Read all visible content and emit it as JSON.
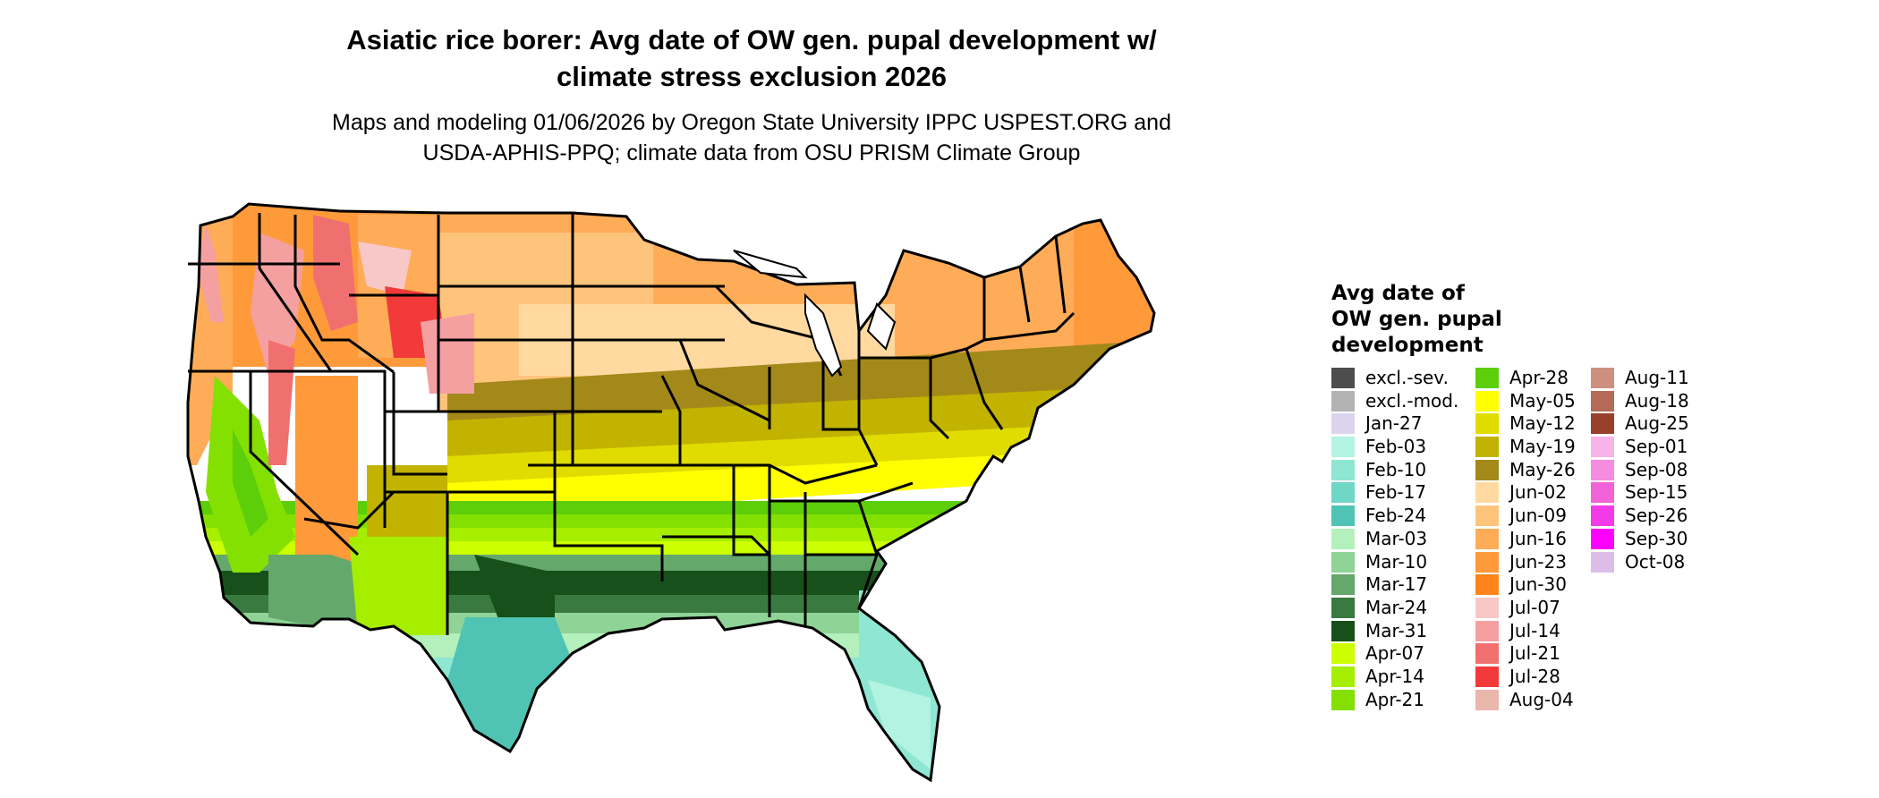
{
  "title_line1": "Asiatic rice borer: Avg date of OW gen. pupal development w/",
  "title_line2": "climate stress exclusion 2026",
  "subtitle_line1": "Maps and modeling 01/06/2026 by Oregon State University IPPC USPEST.ORG and",
  "subtitle_line2": "USDA-APHIS-PPQ; climate data from OSU PRISM Climate Group",
  "legend": {
    "title_line1": "Avg date of",
    "title_line2": "OW gen. pupal",
    "title_line3": "development",
    "items": [
      {
        "label": "excl.-sev.",
        "color": "#4d4d4d"
      },
      {
        "label": "excl.-mod.",
        "color": "#b3b3b3"
      },
      {
        "label": "Jan-27",
        "color": "#dcd3ec"
      },
      {
        "label": "Feb-03",
        "color": "#b2f3e1"
      },
      {
        "label": "Feb-10",
        "color": "#8fe6d3"
      },
      {
        "label": "Feb-17",
        "color": "#6fd7c5"
      },
      {
        "label": "Feb-24",
        "color": "#4fc4b4"
      },
      {
        "label": "Mar-03",
        "color": "#b4f0bc"
      },
      {
        "label": "Mar-10",
        "color": "#8fd496"
      },
      {
        "label": "Mar-17",
        "color": "#64a86c"
      },
      {
        "label": "Mar-24",
        "color": "#3a7a40"
      },
      {
        "label": "Mar-31",
        "color": "#17501a"
      },
      {
        "label": "Apr-07",
        "color": "#ccff00"
      },
      {
        "label": "Apr-14",
        "color": "#a6ee00"
      },
      {
        "label": "Apr-21",
        "color": "#84e000"
      },
      {
        "label": "Apr-28",
        "color": "#5cce0a"
      },
      {
        "label": "May-05",
        "color": "#ffff00"
      },
      {
        "label": "May-12",
        "color": "#e0dc00"
      },
      {
        "label": "May-19",
        "color": "#c2b300"
      },
      {
        "label": "May-26",
        "color": "#a3891a"
      },
      {
        "label": "Jun-02",
        "color": "#ffd9a0"
      },
      {
        "label": "Jun-09",
        "color": "#ffc47c"
      },
      {
        "label": "Jun-16",
        "color": "#ffac58"
      },
      {
        "label": "Jun-23",
        "color": "#ff9a3a"
      },
      {
        "label": "Jun-30",
        "color": "#ff8419"
      },
      {
        "label": "Jul-07",
        "color": "#f8c8c8"
      },
      {
        "label": "Jul-14",
        "color": "#f4a0a0"
      },
      {
        "label": "Jul-21",
        "color": "#f07070"
      },
      {
        "label": "Jul-28",
        "color": "#f23a3a"
      },
      {
        "label": "Aug-04",
        "color": "#e9b7ab"
      },
      {
        "label": "Aug-11",
        "color": "#cf8f7f"
      },
      {
        "label": "Aug-18",
        "color": "#b46a56"
      },
      {
        "label": "Aug-25",
        "color": "#99402c"
      },
      {
        "label": "Sep-01",
        "color": "#f8b4e8"
      },
      {
        "label": "Sep-08",
        "color": "#f58ce0"
      },
      {
        "label": "Sep-15",
        "color": "#f262d8"
      },
      {
        "label": "Sep-26",
        "color": "#f23ae8"
      },
      {
        "label": "Sep-30",
        "color": "#ff00ff"
      },
      {
        "label": "Oct-08",
        "color": "#dcbde8"
      }
    ]
  }
}
